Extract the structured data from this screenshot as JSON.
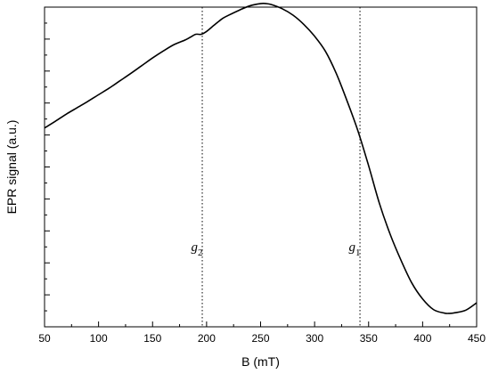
{
  "chart_data": {
    "type": "line",
    "title": "",
    "xlabel": "B (mT)",
    "ylabel": "EPR signal (a.u.)",
    "xlim": [
      50,
      450
    ],
    "ylim": [
      0,
      10
    ],
    "x_ticks": [
      50,
      100,
      150,
      200,
      250,
      300,
      350,
      400,
      450
    ],
    "y_tick_count": 10,
    "y_tick_labels_shown": false,
    "grid": false,
    "legend": "none",
    "series": [
      {
        "x": [
          50,
          60,
          70,
          80,
          90,
          100,
          110,
          120,
          130,
          140,
          150,
          160,
          170,
          180,
          185,
          190,
          195,
          200,
          205,
          210,
          215,
          220,
          230,
          240,
          250,
          255,
          260,
          270,
          280,
          290,
          300,
          310,
          320,
          330,
          340,
          350,
          360,
          370,
          380,
          390,
          400,
          410,
          420,
          425,
          430,
          440,
          450
        ],
        "y": [
          6.22,
          6.43,
          6.65,
          6.85,
          7.05,
          7.26,
          7.47,
          7.7,
          7.93,
          8.17,
          8.41,
          8.63,
          8.83,
          8.97,
          9.06,
          9.15,
          9.15,
          9.24,
          9.38,
          9.52,
          9.65,
          9.74,
          9.9,
          10.04,
          10.11,
          10.11,
          10.08,
          9.95,
          9.75,
          9.46,
          9.09,
          8.62,
          7.93,
          7.07,
          6.14,
          5.04,
          3.86,
          2.89,
          2.08,
          1.37,
          0.87,
          0.54,
          0.43,
          0.42,
          0.44,
          0.52,
          0.75
        ],
        "color": "#000000"
      }
    ],
    "annotations": [
      {
        "label": "g",
        "subscript": "2",
        "x": 196,
        "line": "dotted"
      },
      {
        "label": "g",
        "subscript": "1",
        "x": 342,
        "line": "dotted"
      }
    ]
  }
}
